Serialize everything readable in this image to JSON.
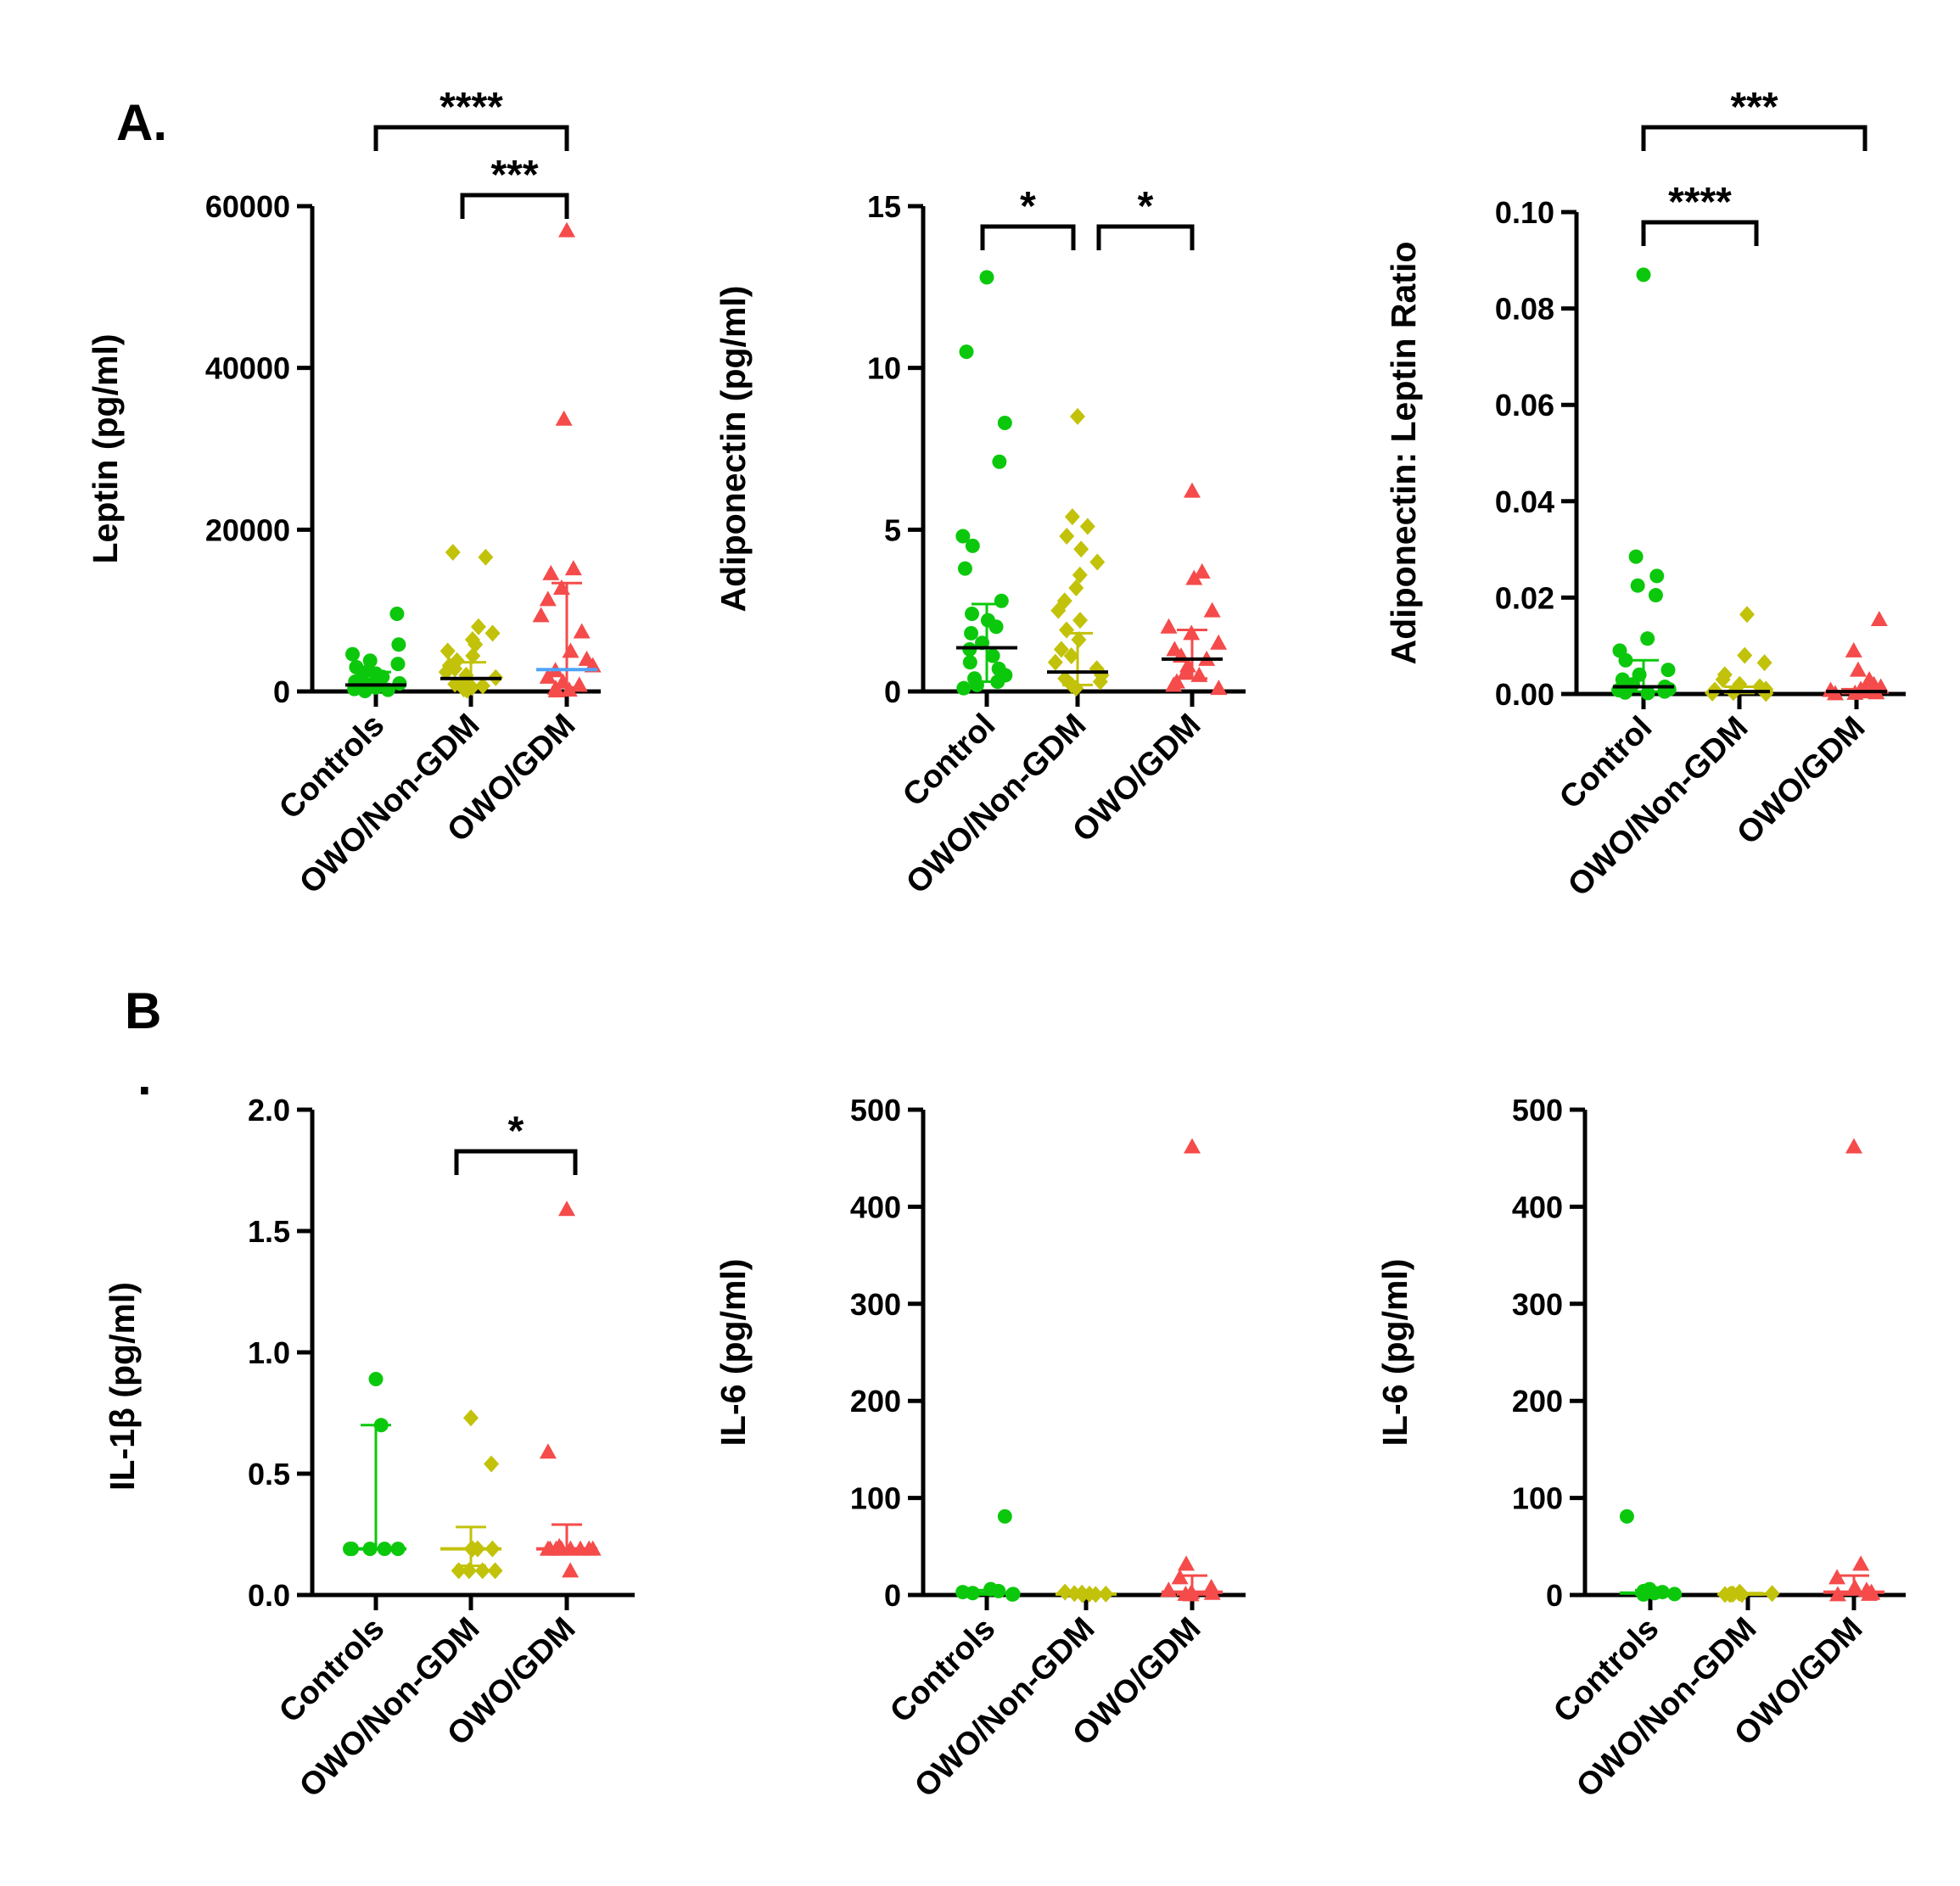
{
  "panel_labels": {
    "a": "A.",
    "b": "B",
    "b_dot": "."
  },
  "colors": {
    "Controls": "#0cc80c",
    "OWO/Non-GDM": "#c2c20a",
    "OWO/GDM": "#f54b4b",
    "median_line": "#000000",
    "gdm_median_line": "#4fa3f7"
  },
  "chart_data": [
    {
      "type": "scatter",
      "ylabel": "Leptin (pg/ml)",
      "categories": [
        "Controls",
        "OWO/Non-GDM",
        "OWO/GDM"
      ],
      "ylim": [
        0,
        60000
      ],
      "yticks": [
        "0",
        "20000",
        "40000",
        "60000"
      ],
      "series": [
        {
          "name": "Controls",
          "marker": "circle",
          "median": 800,
          "iqr": [
            200,
            2400
          ],
          "values": [
            9600,
            5800,
            4600,
            3800,
            3400,
            3000,
            2600,
            2200,
            1800,
            1500,
            1200,
            1000,
            800,
            600,
            500,
            400,
            300,
            200,
            100,
            50
          ]
        },
        {
          "name": "OWO/Non-GDM",
          "marker": "diamond",
          "median": 1600,
          "iqr": [
            400,
            3600
          ],
          "values": [
            17200,
            16600,
            8000,
            7200,
            6400,
            5800,
            5000,
            4400,
            3800,
            3200,
            2800,
            2400,
            2000,
            1700,
            1400,
            1100,
            900,
            700,
            500,
            300,
            150
          ]
        },
        {
          "name": "OWO/GDM",
          "marker": "triangle",
          "median": 2700,
          "iqr": [
            500,
            13400
          ],
          "values": [
            57000,
            33700,
            15200,
            14600,
            12800,
            11400,
            9400,
            7400,
            5000,
            4000,
            3200,
            2600,
            1800,
            1200,
            800,
            400,
            200,
            100
          ]
        }
      ],
      "comparisons": [
        {
          "groups": [
            "Controls",
            "OWO/GDM"
          ],
          "label": "****"
        },
        {
          "groups": [
            "OWO/Non-GDM",
            "OWO/GDM"
          ],
          "label": "***"
        }
      ]
    },
    {
      "type": "scatter",
      "ylabel": "Adiponectin (pg/ml)",
      "categories": [
        "Control",
        "OWO/Non-GDM",
        "OWO/GDM"
      ],
      "ylim": [
        0,
        15
      ],
      "yticks": [
        "0",
        "5",
        "10",
        "15"
      ],
      "series": [
        {
          "name": "Control",
          "marker": "circle",
          "median": 1.35,
          "iqr": [
            0.3,
            2.7
          ],
          "values": [
            12.8,
            10.5,
            8.3,
            7.1,
            4.8,
            4.5,
            3.8,
            2.8,
            2.4,
            2.2,
            2.0,
            1.8,
            1.5,
            1.3,
            1.1,
            0.9,
            0.7,
            0.5,
            0.4,
            0.3,
            0.2,
            0.1
          ]
        },
        {
          "name": "OWO/Non-GDM",
          "marker": "diamond",
          "median": 0.6,
          "iqr": [
            0.2,
            1.8
          ],
          "values": [
            8.5,
            5.4,
            5.1,
            4.8,
            4.4,
            4.0,
            3.6,
            3.2,
            2.8,
            2.5,
            2.2,
            1.9,
            1.6,
            1.3,
            1.1,
            0.9,
            0.7,
            0.5,
            0.4,
            0.3,
            0.2,
            0.1
          ]
        },
        {
          "name": "OWO/GDM",
          "marker": "triangle",
          "median": 1.0,
          "iqr": [
            0.4,
            1.9
          ],
          "values": [
            6.2,
            3.7,
            3.5,
            2.5,
            2.0,
            1.8,
            1.5,
            1.3,
            1.1,
            1.0,
            0.8,
            0.6,
            0.5,
            0.3,
            0.2,
            0.1
          ]
        }
      ],
      "comparisons": [
        {
          "groups": [
            "Control",
            "OWO/Non-GDM"
          ],
          "label": "*"
        },
        {
          "groups": [
            "OWO/Non-GDM",
            "OWO/GDM"
          ],
          "label": "*"
        }
      ]
    },
    {
      "type": "scatter",
      "ylabel": "Adiponectin:  Leptin Ratio",
      "categories": [
        "Control",
        "OWO/Non-GDM",
        "OWO/GDM"
      ],
      "ylim": [
        0,
        0.1
      ],
      "yticks": [
        "0.00",
        "0.02",
        "0.04",
        "0.06",
        "0.08",
        "0.10"
      ],
      "series": [
        {
          "name": "Control",
          "marker": "circle",
          "median": 0.0015,
          "iqr": [
            0.0005,
            0.007
          ],
          "values": [
            0.087,
            0.0285,
            0.0245,
            0.0225,
            0.0205,
            0.0115,
            0.009,
            0.007,
            0.005,
            0.004,
            0.003,
            0.002,
            0.0015,
            0.001,
            0.0008,
            0.0005,
            0.0003,
            0.0002
          ]
        },
        {
          "name": "OWO/Non-GDM",
          "marker": "diamond",
          "median": 0.0005,
          "iqr": [
            0.0002,
            0.0015
          ],
          "values": [
            0.0165,
            0.008,
            0.0065,
            0.004,
            0.003,
            0.002,
            0.0015,
            0.001,
            0.0008,
            0.0005,
            0.0003,
            0.0002,
            0.0001
          ]
        },
        {
          "name": "OWO/GDM",
          "marker": "triangle",
          "median": 0.0005,
          "iqr": [
            0.0002,
            0.001
          ],
          "values": [
            0.0155,
            0.009,
            0.005,
            0.003,
            0.002,
            0.0015,
            0.001,
            0.0008,
            0.0005,
            0.0003,
            0.0002,
            0.0001
          ]
        }
      ],
      "comparisons": [
        {
          "groups": [
            "Control",
            "OWO/GDM"
          ],
          "label": "***"
        },
        {
          "groups": [
            "Control",
            "OWO/Non-GDM"
          ],
          "label": "****"
        }
      ]
    },
    {
      "type": "scatter",
      "ylabel": "IL-1β (pg/ml)",
      "categories": [
        "Controls",
        "OWO/Non-GDM",
        "OWO/GDM"
      ],
      "ylim": [
        0,
        2.0
      ],
      "yticks": [
        "0.0",
        "0.5",
        "1.0",
        "1.5",
        "2.0"
      ],
      "series": [
        {
          "name": "Controls",
          "marker": "circle",
          "median": 0.19,
          "iqr": [
            0.19,
            0.7
          ],
          "values": [
            0.89,
            0.7,
            0.19,
            0.19,
            0.19,
            0.19,
            0.19
          ]
        },
        {
          "name": "OWO/Non-GDM",
          "marker": "diamond",
          "median": 0.19,
          "iqr": [
            0.12,
            0.28
          ],
          "values": [
            0.73,
            0.54,
            0.19,
            0.19,
            0.19,
            0.19,
            0.1,
            0.1,
            0.1,
            0.1
          ]
        },
        {
          "name": "OWO/GDM",
          "marker": "triangle",
          "median": 0.19,
          "iqr": [
            0.17,
            0.29
          ],
          "values": [
            1.59,
            0.59,
            0.2,
            0.19,
            0.19,
            0.19,
            0.19,
            0.19,
            0.19,
            0.19,
            0.19,
            0.1
          ]
        }
      ],
      "comparisons": [
        {
          "groups": [
            "OWO/Non-GDM",
            "OWO/GDM"
          ],
          "label": "*"
        }
      ]
    },
    {
      "type": "scatter",
      "ylabel": "IL-6 (pg/ml)",
      "categories": [
        "Controls",
        "OWO/Non-GDM",
        "OWO/GDM"
      ],
      "ylim": [
        0,
        500
      ],
      "yticks": [
        "0",
        "100",
        "200",
        "300",
        "400",
        "500"
      ],
      "series": [
        {
          "name": "Controls",
          "marker": "circle",
          "median": 2,
          "iqr": [
            0.5,
            5
          ],
          "values": [
            81,
            6,
            4,
            3,
            2,
            1,
            0.5
          ]
        },
        {
          "name": "OWO/Non-GDM",
          "marker": "diamond",
          "median": 1,
          "iqr": [
            0.5,
            2
          ],
          "values": [
            3,
            2,
            1.5,
            1,
            1,
            0.5,
            0.5,
            0.5
          ]
        },
        {
          "name": "OWO/GDM",
          "marker": "triangle",
          "median": 3,
          "iqr": [
            0.5,
            20
          ],
          "values": [
            462,
            32,
            18,
            8,
            5,
            3,
            2,
            1,
            0.5
          ]
        }
      ],
      "comparisons": []
    },
    {
      "type": "scatter",
      "ylabel": "IL-6 (pg/ml)",
      "categories": [
        "Controls",
        "OWO/Non-GDM",
        "OWO/GDM"
      ],
      "ylim": [
        0,
        500
      ],
      "yticks": [
        "0",
        "100",
        "200",
        "300",
        "400",
        "500"
      ],
      "series": [
        {
          "name": "Controls",
          "marker": "circle",
          "median": 2,
          "iqr": [
            0.5,
            5
          ],
          "values": [
            81,
            6,
            4,
            3,
            2,
            1,
            0.5
          ]
        },
        {
          "name": "OWO/Non-GDM",
          "marker": "diamond",
          "median": 1,
          "iqr": [
            0.5,
            2
          ],
          "values": [
            3,
            2,
            1.5,
            1,
            1,
            0.5,
            0.5,
            0.5
          ]
        },
        {
          "name": "OWO/GDM",
          "marker": "triangle",
          "median": 3,
          "iqr": [
            0.5,
            20
          ],
          "values": [
            462,
            32,
            18,
            8,
            5,
            3,
            2,
            1,
            0.5
          ]
        }
      ],
      "comparisons": []
    }
  ]
}
